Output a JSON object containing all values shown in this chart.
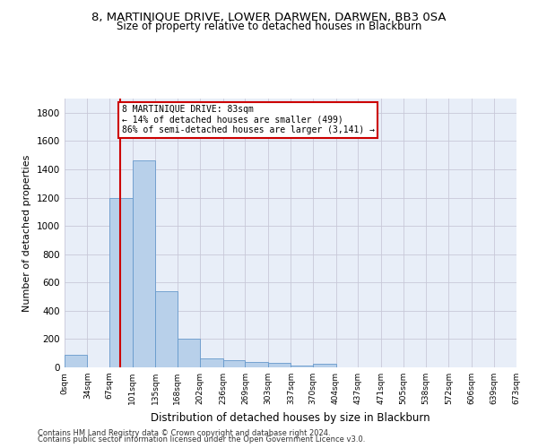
{
  "title": "8, MARTINIQUE DRIVE, LOWER DARWEN, DARWEN, BB3 0SA",
  "subtitle": "Size of property relative to detached houses in Blackburn",
  "xlabel": "Distribution of detached houses by size in Blackburn",
  "ylabel": "Number of detached properties",
  "footnote1": "Contains HM Land Registry data © Crown copyright and database right 2024.",
  "footnote2": "Contains public sector information licensed under the Open Government Licence v3.0.",
  "bin_edges": [
    0,
    34,
    67,
    101,
    135,
    168,
    202,
    236,
    269,
    303,
    337,
    370,
    404,
    437,
    471,
    505,
    538,
    572,
    606,
    639,
    673
  ],
  "bar_heights": [
    90,
    0,
    1200,
    1460,
    540,
    205,
    65,
    50,
    38,
    30,
    10,
    25,
    0,
    0,
    0,
    0,
    0,
    0,
    0,
    0
  ],
  "bar_color": "#b8d0ea",
  "bar_edge_color": "#6699cc",
  "property_size": 83,
  "annotation_title": "8 MARTINIQUE DRIVE: 83sqm",
  "annotation_line1": "← 14% of detached houses are smaller (499)",
  "annotation_line2": "86% of semi-detached houses are larger (3,141) →",
  "vline_color": "#cc0000",
  "box_edge_color": "#cc0000",
  "ylim": [
    0,
    1900
  ],
  "yticks": [
    0,
    200,
    400,
    600,
    800,
    1000,
    1200,
    1400,
    1600,
    1800
  ],
  "background_color": "#ffffff",
  "axes_bg_color": "#e8eef8",
  "grid_color": "#c8c8d8",
  "tick_labels": [
    "0sqm",
    "34sqm",
    "67sqm",
    "101sqm",
    "135sqm",
    "168sqm",
    "202sqm",
    "236sqm",
    "269sqm",
    "303sqm",
    "337sqm",
    "370sqm",
    "404sqm",
    "437sqm",
    "471sqm",
    "505sqm",
    "538sqm",
    "572sqm",
    "606sqm",
    "639sqm",
    "673sqm"
  ]
}
